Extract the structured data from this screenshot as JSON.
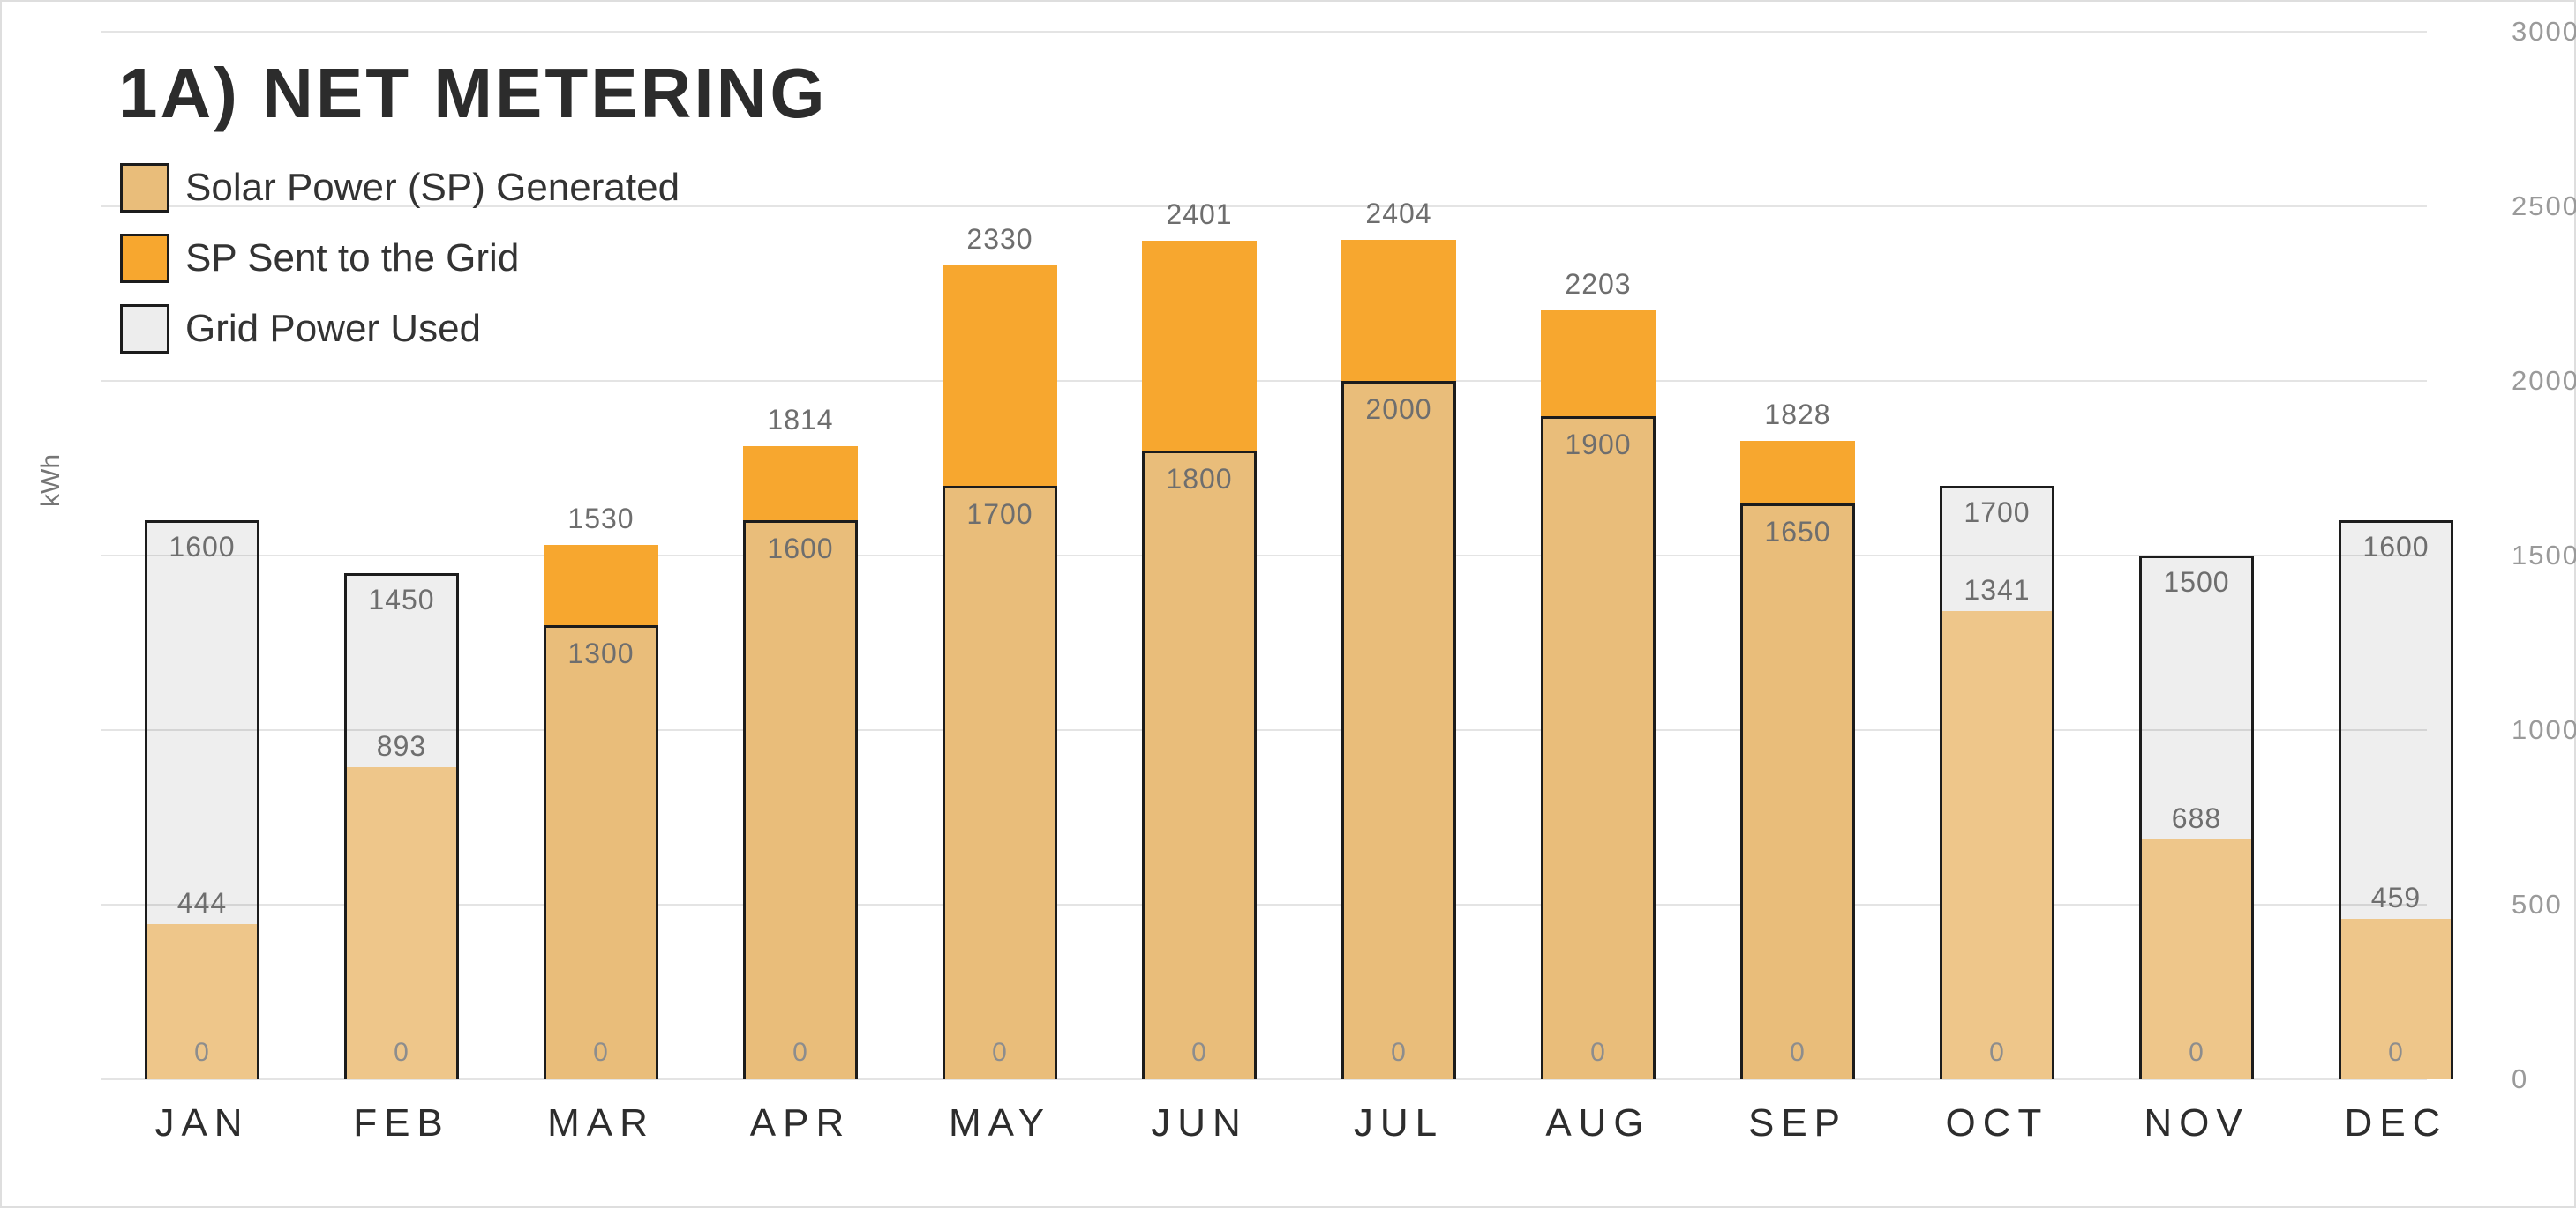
{
  "title": "1A) NET METERING",
  "y_axis": {
    "unit_label": "kWh",
    "ticks": [
      3000,
      2500,
      2000,
      1500,
      1000,
      500,
      0
    ],
    "max": 3000
  },
  "legend": {
    "items": [
      {
        "label": "Solar Power (SP) Generated",
        "color": "#E9BD7A"
      },
      {
        "label": "SP Sent to the Grid",
        "color": "#F7A72F"
      },
      {
        "label": "Grid Power Used",
        "color": "#EDEDED"
      }
    ]
  },
  "colors": {
    "solar": "#E9BD7A",
    "solar_muted": "#EEC68A",
    "sent": "#F7A72F",
    "grid_fill": "#EDEDED",
    "bar_border": "#1c1c1c",
    "gridline": "#e4e4e4",
    "title_text": "#2c2c2c",
    "month_text": "#2d2d2d",
    "value_label": "#6e6e6e",
    "tick_label": "#9a9a9a"
  },
  "months": [
    {
      "label": "JAN",
      "solar": 444,
      "top_type": "grid",
      "top_value": 1600,
      "zero_label": "0"
    },
    {
      "label": "FEB",
      "solar": 893,
      "top_type": "grid",
      "top_value": 1450,
      "zero_label": "0"
    },
    {
      "label": "MAR",
      "solar": 1300,
      "top_type": "sent",
      "top_value": 1530,
      "zero_label": "0"
    },
    {
      "label": "APR",
      "solar": 1600,
      "top_type": "sent",
      "top_value": 1814,
      "zero_label": "0"
    },
    {
      "label": "MAY",
      "solar": 1700,
      "top_type": "sent",
      "top_value": 2330,
      "zero_label": "0"
    },
    {
      "label": "JUN",
      "solar": 1800,
      "top_type": "sent",
      "top_value": 2401,
      "zero_label": "0"
    },
    {
      "label": "JUL",
      "solar": 2000,
      "top_type": "sent",
      "top_value": 2404,
      "zero_label": "0"
    },
    {
      "label": "AUG",
      "solar": 1900,
      "top_type": "sent",
      "top_value": 2203,
      "zero_label": "0"
    },
    {
      "label": "SEP",
      "solar": 1650,
      "top_type": "sent",
      "top_value": 1828,
      "zero_label": "0"
    },
    {
      "label": "OCT",
      "solar": 1341,
      "top_type": "grid",
      "top_value": 1700,
      "zero_label": "0"
    },
    {
      "label": "NOV",
      "solar": 688,
      "top_type": "grid",
      "top_value": 1500,
      "zero_label": "0"
    },
    {
      "label": "DEC",
      "solar": 459,
      "top_type": "grid",
      "top_value": 1600,
      "zero_label": "0"
    }
  ],
  "chart_data": {
    "type": "bar",
    "title": "1A) NET METERING",
    "xlabel": "",
    "ylabel": "kWh",
    "ylim": [
      0,
      3000
    ],
    "yticks": [
      0,
      500,
      1000,
      1500,
      2000,
      2500,
      3000
    ],
    "grid": "horizontal",
    "legend_position": "top-left",
    "categories": [
      "JAN",
      "FEB",
      "MAR",
      "APR",
      "MAY",
      "JUN",
      "JUL",
      "AUG",
      "SEP",
      "OCT",
      "NOV",
      "DEC"
    ],
    "series": [
      {
        "name": "Solar Power (SP) Generated",
        "color": "#E9BD7A",
        "values": [
          444,
          893,
          1300,
          1600,
          1700,
          1800,
          2000,
          1900,
          1650,
          1341,
          688,
          459
        ]
      },
      {
        "name": "SP Sent to the Grid",
        "color": "#F7A72F",
        "values": [
          0,
          0,
          230,
          214,
          630,
          601,
          404,
          303,
          178,
          0,
          0,
          0
        ]
      },
      {
        "name": "Grid Power Used",
        "color": "#EDEDED",
        "values": [
          1156,
          557,
          0,
          0,
          0,
          0,
          0,
          0,
          0,
          359,
          812,
          1141
        ]
      }
    ],
    "stack_top_labels": [
      1600,
      1450,
      1530,
      1814,
      2330,
      2401,
      2404,
      2203,
      1828,
      1700,
      1500,
      1600
    ],
    "solar_labels": [
      444,
      893,
      1300,
      1600,
      1700,
      1800,
      2000,
      1900,
      1650,
      1341,
      688,
      459
    ],
    "base_labels": [
      0,
      0,
      0,
      0,
      0,
      0,
      0,
      0,
      0,
      0,
      0,
      0
    ]
  }
}
